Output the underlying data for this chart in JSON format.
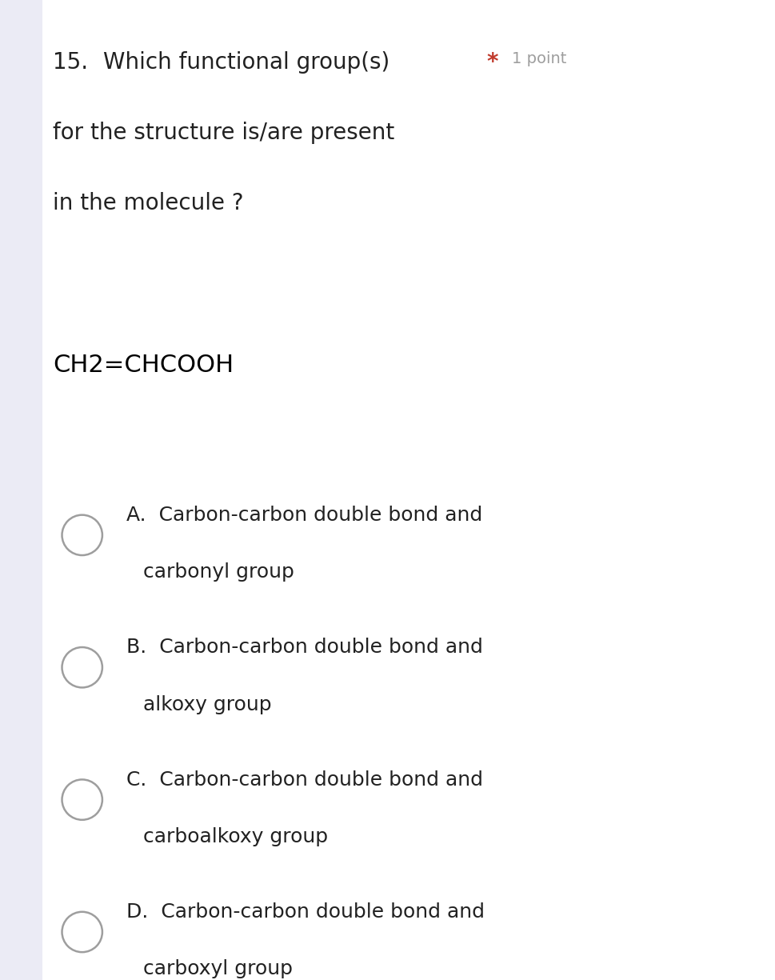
{
  "question_number": "15.",
  "question_text_line1": "Which functional group(s)",
  "question_text_line2": "for the structure is/are present",
  "question_text_line3": "in the molecule ?",
  "required_marker": "*",
  "points_text": "1 point",
  "formula": "CH2=CHCOOH",
  "options": [
    {
      "letter": "A.",
      "line1": "Carbon-carbon double bond and",
      "line2": "carbonyl group"
    },
    {
      "letter": "B.",
      "line1": "Carbon-carbon double bond and",
      "line2": "alkoxy group"
    },
    {
      "letter": "C.",
      "line1": "Carbon-carbon double bond and",
      "line2": "carboalkoxy group"
    },
    {
      "letter": "D.",
      "line1": "Carbon-carbon double bond and",
      "line2": "carboxyl group"
    }
  ],
  "background_color": "#ffffff",
  "text_color": "#212121",
  "option_text_color": "#212121",
  "required_color": "#c0392b",
  "points_color": "#9e9e9e",
  "circle_edge_color": "#9e9e9e",
  "left_bar_color": "#ebebf5",
  "formula_color": "#000000",
  "question_fontsize": 20,
  "points_fontsize": 14,
  "formula_fontsize": 22,
  "option_fontsize": 18,
  "left_bar_width": 0.055
}
